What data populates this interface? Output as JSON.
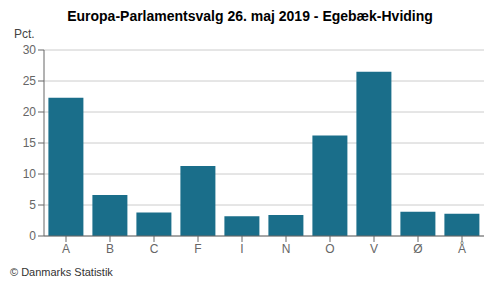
{
  "chart_data": {
    "type": "bar",
    "title": "Europa-Parlamentsvalg 26. maj 2019 - Egebæk-Hviding",
    "ylabel": "Pct.",
    "annotations": [
      "© Danmarks Statistik"
    ],
    "categories": [
      "A",
      "B",
      "C",
      "F",
      "I",
      "N",
      "O",
      "V",
      "Ø",
      "Å"
    ],
    "values": [
      22.3,
      6.6,
      3.8,
      11.3,
      3.2,
      3.4,
      16.2,
      26.5,
      3.9,
      3.6
    ],
    "color": "#1a6e8a",
    "ylim": [
      0,
      30
    ],
    "yticks": [
      0,
      5,
      10,
      15,
      20,
      25,
      30
    ],
    "grid": true
  }
}
